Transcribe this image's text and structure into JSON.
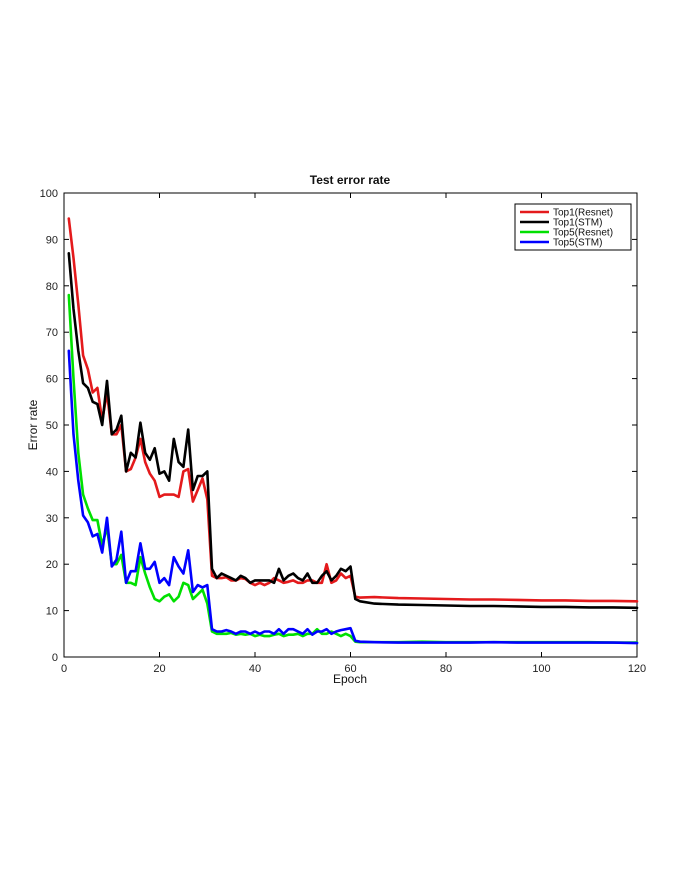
{
  "chart_data": {
    "type": "line",
    "title": "Test error rate",
    "xlabel": "Epoch",
    "ylabel": "Error rate",
    "xlim": [
      0,
      120
    ],
    "ylim": [
      0,
      100
    ],
    "xticks": [
      0,
      20,
      40,
      60,
      80,
      100,
      120
    ],
    "yticks": [
      0,
      10,
      20,
      30,
      40,
      50,
      60,
      70,
      80,
      90,
      100
    ],
    "grid": false,
    "legend_position": "top-right",
    "series": [
      {
        "name": "Top1(Resnet)",
        "color": "#e41a1c",
        "x": [
          1,
          2,
          3,
          4,
          5,
          6,
          7,
          8,
          9,
          10,
          11,
          12,
          13,
          14,
          15,
          16,
          17,
          18,
          19,
          20,
          21,
          22,
          23,
          24,
          25,
          26,
          27,
          28,
          29,
          30,
          31,
          32,
          33,
          34,
          35,
          36,
          37,
          38,
          39,
          40,
          41,
          42,
          43,
          44,
          45,
          46,
          47,
          48,
          49,
          50,
          51,
          52,
          53,
          54,
          55,
          56,
          57,
          58,
          59,
          60,
          61,
          62,
          65,
          70,
          75,
          80,
          85,
          90,
          95,
          100,
          105,
          110,
          115,
          120
        ],
        "y": [
          94.5,
          86,
          76,
          65,
          62,
          57,
          58,
          51,
          57,
          48,
          48,
          50,
          40,
          40.5,
          43,
          47,
          42,
          39.5,
          38,
          34.5,
          35,
          35,
          35,
          34.5,
          40,
          40.5,
          33.5,
          36,
          38.5,
          34,
          17.5,
          17,
          17,
          17.2,
          16.5,
          16.5,
          17,
          16.8,
          16,
          15.5,
          16,
          15.5,
          16,
          17,
          16.5,
          16,
          16.2,
          16.5,
          16,
          16,
          16.5,
          16.5,
          16,
          16,
          20,
          16,
          16.5,
          18,
          17,
          17.5,
          13,
          12.8,
          12.9,
          12.7,
          12.6,
          12.5,
          12.4,
          12.4,
          12.3,
          12.2,
          12.2,
          12.1,
          12.1,
          12
        ]
      },
      {
        "name": "Top1(STM)",
        "color": "#000000",
        "x": [
          1,
          2,
          3,
          4,
          5,
          6,
          7,
          8,
          9,
          10,
          11,
          12,
          13,
          14,
          15,
          16,
          17,
          18,
          19,
          20,
          21,
          22,
          23,
          24,
          25,
          26,
          27,
          28,
          29,
          30,
          31,
          32,
          33,
          34,
          35,
          36,
          37,
          38,
          39,
          40,
          41,
          42,
          43,
          44,
          45,
          46,
          47,
          48,
          49,
          50,
          51,
          52,
          53,
          54,
          55,
          56,
          57,
          58,
          59,
          60,
          61,
          62,
          65,
          70,
          75,
          80,
          85,
          90,
          95,
          100,
          105,
          110,
          115,
          120
        ],
        "y": [
          87,
          75,
          66,
          59,
          58,
          55,
          54.5,
          50,
          59.5,
          48,
          49,
          52,
          40,
          44,
          43,
          50.5,
          44,
          42.5,
          45,
          39.5,
          40,
          38,
          47,
          42,
          41,
          49,
          36,
          39,
          39,
          40,
          19,
          17,
          18,
          17.5,
          17,
          16.5,
          17.5,
          17,
          16,
          16.5,
          16.5,
          16.5,
          16.5,
          16,
          19,
          16.5,
          17.5,
          18,
          17,
          16.5,
          18,
          16,
          16,
          17.5,
          18.5,
          16.5,
          17.5,
          19,
          18.5,
          19.5,
          12.5,
          12,
          11.5,
          11.3,
          11.2,
          11.1,
          11,
          11,
          10.9,
          10.8,
          10.8,
          10.7,
          10.7,
          10.6
        ]
      },
      {
        "name": "Top5(Resnet)",
        "color": "#00e000",
        "x": [
          1,
          2,
          3,
          4,
          5,
          6,
          7,
          8,
          9,
          10,
          11,
          12,
          13,
          14,
          15,
          16,
          17,
          18,
          19,
          20,
          21,
          22,
          23,
          24,
          25,
          26,
          27,
          28,
          29,
          30,
          31,
          32,
          33,
          34,
          35,
          36,
          37,
          38,
          39,
          40,
          41,
          42,
          43,
          44,
          45,
          46,
          47,
          48,
          49,
          50,
          51,
          52,
          53,
          54,
          55,
          56,
          57,
          58,
          59,
          60,
          61,
          62,
          65,
          70,
          75,
          80,
          85,
          90,
          95,
          100,
          105,
          110,
          115,
          120
        ],
        "y": [
          78,
          60,
          44,
          35,
          32,
          29.5,
          29.5,
          24,
          28,
          20,
          20,
          22,
          16,
          16,
          15.5,
          21.5,
          18,
          15,
          12.5,
          12,
          13,
          13.5,
          12,
          13,
          16,
          15.5,
          12.5,
          13.5,
          14.5,
          11.5,
          5.5,
          5,
          5,
          5,
          5.2,
          4.8,
          5,
          4.8,
          5,
          4.5,
          4.8,
          4.5,
          4.5,
          4.8,
          5,
          4.5,
          4.8,
          4.8,
          5,
          4.5,
          5,
          5,
          6,
          5,
          5,
          5.5,
          5,
          4.5,
          5,
          4.5,
          3.3,
          3.2,
          3.2,
          3.2,
          3.3,
          3.2,
          3.2,
          3.2,
          3.2,
          3.2,
          3.2,
          3.2,
          3.1,
          3.1
        ]
      },
      {
        "name": "Top5(STM)",
        "color": "#0000ff",
        "x": [
          1,
          2,
          3,
          4,
          5,
          6,
          7,
          8,
          9,
          10,
          11,
          12,
          13,
          14,
          15,
          16,
          17,
          18,
          19,
          20,
          21,
          22,
          23,
          24,
          25,
          26,
          27,
          28,
          29,
          30,
          31,
          32,
          33,
          34,
          35,
          36,
          37,
          38,
          39,
          40,
          41,
          42,
          43,
          44,
          45,
          46,
          47,
          48,
          49,
          50,
          51,
          52,
          53,
          54,
          55,
          56,
          57,
          58,
          59,
          60,
          61,
          62,
          65,
          70,
          75,
          80,
          85,
          90,
          95,
          100,
          105,
          110,
          115,
          120
        ],
        "y": [
          66,
          48,
          38,
          30.5,
          29,
          26,
          26.5,
          22.5,
          30,
          19.5,
          21,
          27,
          16,
          18.5,
          18.5,
          24.5,
          19,
          19,
          20.5,
          16,
          17,
          15.5,
          21.5,
          19.5,
          18,
          23,
          14,
          15.5,
          15,
          15.5,
          6,
          5.5,
          5.5,
          5.8,
          5.5,
          5,
          5.5,
          5.5,
          5,
          5.5,
          5,
          5.5,
          5.5,
          5,
          6,
          5,
          6,
          6,
          5.5,
          5,
          6,
          4.8,
          5.5,
          5.5,
          6,
          5,
          5.5,
          5.8,
          6,
          6.2,
          3.5,
          3.3,
          3.2,
          3.1,
          3.1,
          3.1,
          3.1,
          3.2,
          3.1,
          3.1,
          3.1,
          3.1,
          3.1,
          3.0
        ]
      }
    ]
  }
}
